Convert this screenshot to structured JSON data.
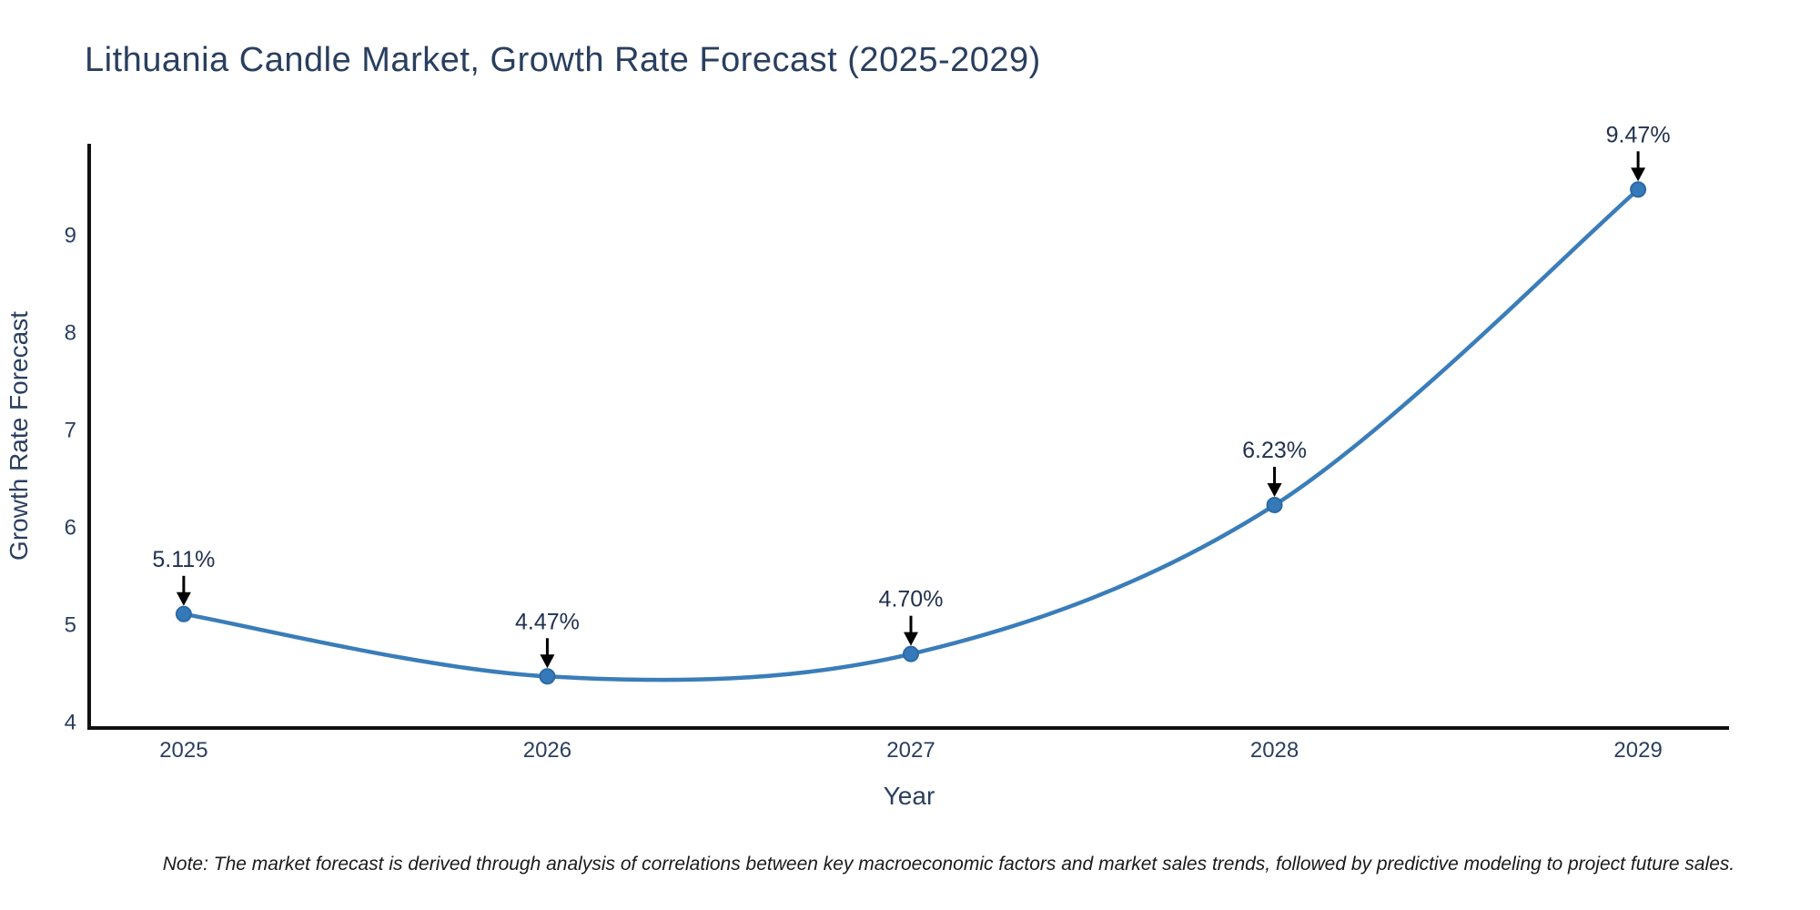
{
  "title": "Lithuania Candle Market, Growth Rate Forecast (2025-2029)",
  "note": "Note: The market forecast is derived through analysis of correlations between key macroeconomic factors and market sales trends, followed by predictive modeling to project future sales.",
  "chart_data": {
    "type": "line",
    "title": "Lithuania Candle Market, Growth Rate Forecast (2025-2029)",
    "xlabel": "Year",
    "ylabel": "Growth Rate Forecast",
    "x": [
      2025,
      2026,
      2027,
      2028,
      2029
    ],
    "values": [
      5.11,
      4.47,
      4.7,
      6.23,
      9.47
    ],
    "point_labels": [
      "5.11%",
      "4.47%",
      "4.70%",
      "6.23%",
      "9.47%"
    ],
    "xticks": [
      "2025",
      "2026",
      "2027",
      "2028",
      "2029"
    ],
    "yticks": [
      4,
      5,
      6,
      7,
      8,
      9
    ],
    "xlim": [
      2024.74,
      2029.25
    ],
    "ylim": [
      3.94,
      9.94
    ],
    "grid": false,
    "legend": "none",
    "line_shape": "spline",
    "colors": {
      "line": "#3a7db9",
      "marker_fill": "#3579b8",
      "marker_edge": "#2c6aa5",
      "axis": "#111111",
      "text": "#2a3f5f",
      "annotation_text": "#22314f",
      "arrow": "#000000",
      "background": "#ffffff"
    }
  }
}
